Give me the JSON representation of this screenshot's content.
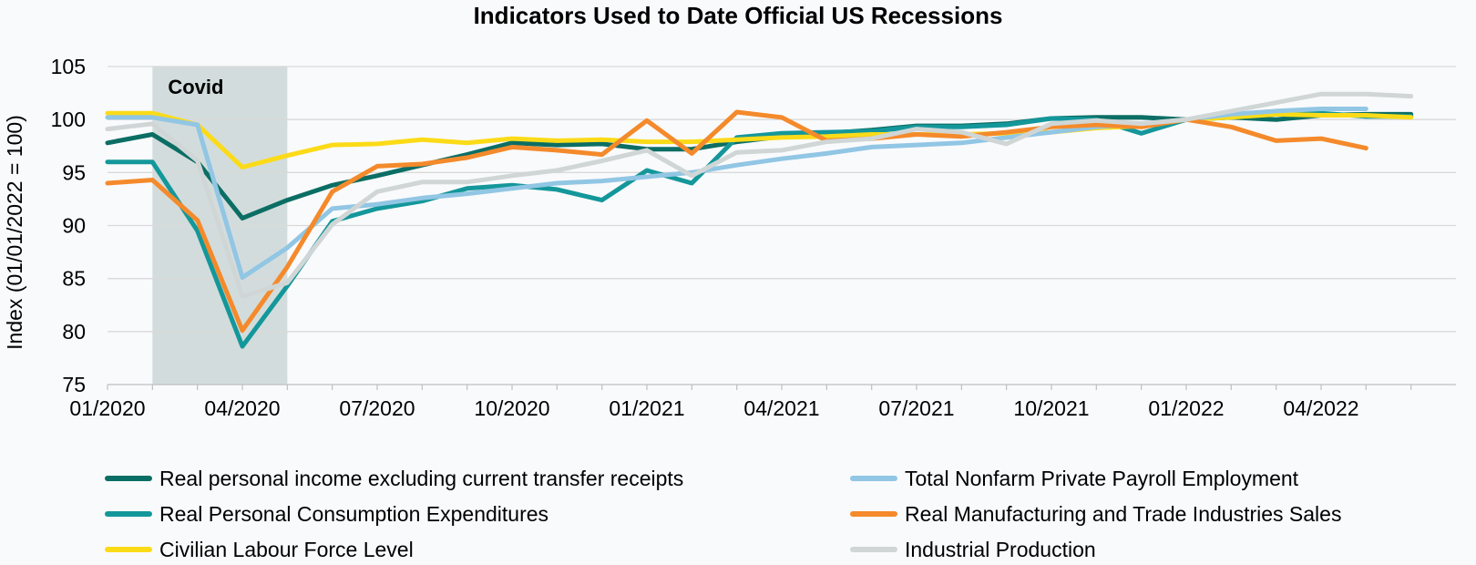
{
  "chart_data": {
    "type": "line",
    "title": "Indicators Used to Date Official US Recessions",
    "xlabel": "",
    "ylabel": "Index (01/01/2022 = 100)",
    "ylim": [
      75,
      105
    ],
    "yticks": [
      75,
      80,
      85,
      90,
      95,
      100,
      105
    ],
    "x": [
      "01/2020",
      "02/2020",
      "03/2020",
      "04/2020",
      "05/2020",
      "06/2020",
      "07/2020",
      "08/2020",
      "09/2020",
      "10/2020",
      "11/2020",
      "12/2020",
      "01/2021",
      "02/2021",
      "03/2021",
      "04/2021",
      "05/2021",
      "06/2021",
      "07/2021",
      "08/2021",
      "09/2021",
      "10/2021",
      "11/2021",
      "12/2021",
      "01/2022",
      "02/2022",
      "03/2022",
      "04/2022",
      "05/2022",
      "06/2022"
    ],
    "xtick_labels": [
      "01/2020",
      "04/2020",
      "07/2020",
      "10/2020",
      "01/2021",
      "04/2021",
      "07/2021",
      "10/2021",
      "01/2022",
      "04/2022"
    ],
    "grid": "horizontal",
    "legend_position": "bottom",
    "shaded_regions": [
      {
        "label": "Covid",
        "start": "02/2020",
        "end": "05/2020",
        "color": "#c5d1d1"
      }
    ],
    "series": [
      {
        "name": "Real personal income excluding current transfer receipts",
        "color": "#0b6e64",
        "values": [
          97.8,
          98.6,
          96.0,
          90.7,
          92.4,
          93.8,
          94.7,
          95.7,
          96.7,
          97.8,
          97.6,
          97.7,
          97.2,
          97.2,
          97.9,
          98.4,
          98.7,
          99.0,
          99.4,
          99.4,
          99.6,
          100.1,
          100.2,
          100.2,
          100.0,
          100.2,
          100.0,
          100.4,
          100.5,
          100.5
        ]
      },
      {
        "name": "Real Personal Consumption Expenditures",
        "color": "#14979a",
        "values": [
          96.0,
          96.0,
          89.5,
          78.6,
          84.3,
          90.4,
          91.6,
          92.3,
          93.5,
          93.8,
          93.4,
          92.4,
          95.2,
          94.0,
          98.3,
          98.7,
          98.8,
          98.9,
          99.3,
          99.3,
          99.5,
          100.1,
          100.0,
          98.7,
          100.0,
          100.3,
          100.5,
          100.6,
          100.3,
          100.3
        ]
      },
      {
        "name": "Civilian Labour Force Level",
        "color": "#fbdb18",
        "values": [
          100.6,
          100.6,
          99.5,
          95.5,
          96.6,
          97.6,
          97.7,
          98.1,
          97.8,
          98.2,
          98.0,
          98.1,
          97.9,
          97.9,
          98.1,
          98.3,
          98.4,
          98.6,
          98.6,
          98.6,
          98.7,
          98.8,
          99.2,
          99.4,
          100.0,
          100.2,
          100.5,
          100.4,
          100.4,
          100.2
        ]
      },
      {
        "name": "Total Nonfarm Private Payroll Employment",
        "color": "#91c6e4",
        "values": [
          100.2,
          100.2,
          99.5,
          85.1,
          87.9,
          91.6,
          92.0,
          92.6,
          93.0,
          93.5,
          94.0,
          94.2,
          94.6,
          95.0,
          95.7,
          96.3,
          96.8,
          97.4,
          97.6,
          97.8,
          98.3,
          98.8,
          99.3,
          99.6,
          100.0,
          100.5,
          100.8,
          101.0,
          101.0,
          null
        ]
      },
      {
        "name": "Real Manufacturing and Trade Industries Sales",
        "color": "#f48a2b",
        "values": [
          94.0,
          94.3,
          90.5,
          80.1,
          86.1,
          93.2,
          95.6,
          95.8,
          96.4,
          97.4,
          97.1,
          96.7,
          99.9,
          96.8,
          100.7,
          100.2,
          98.0,
          98.2,
          98.6,
          98.4,
          98.8,
          99.3,
          99.5,
          99.3,
          100.0,
          99.3,
          98.0,
          98.2,
          97.3,
          null
        ]
      },
      {
        "name": "Industrial Production",
        "color": "#d0d6d6",
        "values": [
          99.1,
          99.6,
          96.1,
          83.3,
          84.6,
          90.1,
          93.2,
          94.1,
          94.1,
          94.7,
          95.2,
          96.1,
          97.1,
          94.7,
          96.9,
          97.1,
          97.9,
          98.2,
          99.1,
          98.8,
          97.7,
          99.6,
          99.9,
          99.6,
          100.0,
          100.8,
          101.6,
          102.4,
          102.4,
          102.2
        ]
      }
    ]
  }
}
